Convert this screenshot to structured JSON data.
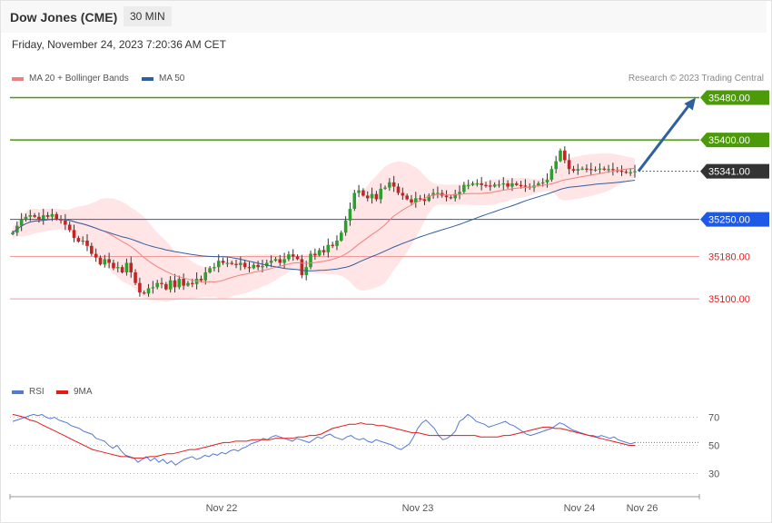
{
  "header": {
    "instrument": "Dow Jones (CME)",
    "timeframe": "30 MIN"
  },
  "timestamp": "Friday, November 24, 2023 7:20:36 AM CET",
  "legend": {
    "ma20_label": "MA 20 + Bollinger Bands",
    "ma50_label": "MA 50",
    "credit": "Research © 2023 Trading Central",
    "rsi_label": "RSI",
    "ma9_label": "9MA"
  },
  "colors": {
    "ma20": "#f08080",
    "ma50": "#2f5f9f",
    "band_fill": "#ffe0e0",
    "up": "#2e9e2e",
    "down": "#c82323",
    "resistance": "#4c9a0a",
    "current": "#333333",
    "support_blue": "#1e5ae6",
    "support_red": "#f29a9a",
    "rsi": "#5578d6",
    "rsi_ma": "#e11b1b",
    "arrow": "#2f5f9f"
  },
  "chart_data": {
    "type": "candlestick",
    "ylim": [
      34910,
      35510
    ],
    "levels": [
      {
        "label": "35480.00",
        "value": 35480,
        "kind": "resistance"
      },
      {
        "label": "35400.00",
        "value": 35400,
        "kind": "resistance"
      },
      {
        "label": "35341.00",
        "value": 35341,
        "kind": "current"
      },
      {
        "label": "35250.00",
        "value": 35250,
        "kind": "support-blue"
      },
      {
        "label": "35180.00",
        "value": 35180,
        "kind": "support"
      },
      {
        "label": "35100.00",
        "value": 35100,
        "kind": "support"
      }
    ],
    "target_arrow": {
      "from": 35341,
      "to": 35480
    },
    "x_ticks": [
      "Nov 22",
      "Nov 23",
      "Nov 24",
      "Nov 26"
    ],
    "closes": [
      35225,
      35238,
      35250,
      35255,
      35258,
      35255,
      35250,
      35258,
      35255,
      35260,
      35250,
      35248,
      35240,
      35230,
      35215,
      35208,
      35210,
      35200,
      35185,
      35178,
      35165,
      35175,
      35168,
      35158,
      35160,
      35150,
      35168,
      35150,
      35130,
      35112,
      35110,
      35120,
      35122,
      35130,
      35128,
      35118,
      35135,
      35122,
      35138,
      35125,
      35130,
      35128,
      35138,
      35135,
      35150,
      35158,
      35160,
      35172,
      35168,
      35168,
      35166,
      35164,
      35168,
      35160,
      35158,
      35164,
      35160,
      35162,
      35168,
      35172,
      35175,
      35168,
      35175,
      35184,
      35180,
      35175,
      35145,
      35160,
      35185,
      35182,
      35192,
      35188,
      35202,
      35200,
      35210,
      35225,
      35248,
      35270,
      35300,
      35305,
      35295,
      35290,
      35298,
      35288,
      35308,
      35310,
      35320,
      35312,
      35300,
      35295,
      35288,
      35282,
      35290,
      35288,
      35285,
      35295,
      35300,
      35300,
      35295,
      35292,
      35290,
      35298,
      35302,
      35315,
      35315,
      35318,
      35318,
      35315,
      35314,
      35312,
      35316,
      35316,
      35318,
      35312,
      35318,
      35315,
      35314,
      35312,
      35310,
      35314,
      35318,
      35320,
      35325,
      35345,
      35360,
      35380,
      35362,
      35345,
      35342,
      35345,
      35346,
      35345,
      35344,
      35344,
      35346,
      35344,
      35345,
      35343,
      35342,
      35340,
      35338,
      35339,
      35341
    ],
    "rsi_ylim": [
      20,
      80
    ],
    "rsi_levels": [
      70,
      50,
      30
    ],
    "rsi": [
      67,
      68,
      69,
      70,
      71,
      72,
      71,
      72,
      70,
      69,
      70,
      68,
      67,
      66,
      64,
      63,
      62,
      60,
      59,
      58,
      55,
      54,
      53,
      50,
      48,
      50,
      46,
      43,
      42,
      41,
      38,
      40,
      42,
      39,
      41,
      38,
      40,
      37,
      39,
      36,
      38,
      40,
      41,
      42,
      40,
      41,
      43,
      42,
      44,
      43,
      45,
      44,
      46,
      47,
      46,
      48,
      49,
      51,
      52,
      53,
      55,
      54,
      56,
      57,
      56,
      55,
      54,
      53,
      55,
      54,
      53,
      52,
      54,
      56,
      55,
      57,
      58,
      56,
      55,
      54,
      56,
      57,
      55,
      54,
      55,
      53,
      52,
      54,
      53,
      52,
      51,
      50,
      48,
      47,
      49,
      51,
      56,
      62,
      66,
      68,
      65,
      62,
      57,
      54,
      55,
      57,
      60,
      67,
      69,
      72,
      70,
      67,
      66,
      65,
      63,
      64,
      65,
      66,
      67,
      65,
      64,
      62,
      60,
      58,
      57,
      58,
      59,
      60,
      61,
      62,
      64,
      66,
      65,
      63,
      61,
      60,
      59,
      58,
      57,
      57,
      56,
      57,
      56,
      55,
      56,
      54,
      53,
      52,
      51,
      52
    ],
    "rsi_ma": [
      72,
      71,
      70,
      68,
      67,
      65,
      63,
      61,
      59,
      57,
      55,
      53,
      51,
      49,
      47,
      46,
      45,
      44,
      43,
      42,
      42,
      41,
      41,
      41,
      42,
      42,
      43,
      44,
      44,
      45,
      46,
      47,
      47,
      48,
      49,
      50,
      51,
      52,
      52,
      53,
      53,
      53,
      54,
      54,
      54,
      54,
      55,
      55,
      55,
      55,
      56,
      56,
      57,
      57,
      58,
      60,
      62,
      63,
      64,
      65,
      65,
      66,
      65,
      65,
      64,
      64,
      63,
      62,
      61,
      60,
      59,
      59,
      58,
      57,
      57,
      57,
      57,
      57,
      57,
      57,
      57,
      57,
      56,
      56,
      56,
      56,
      57,
      57,
      58,
      59,
      60,
      61,
      62,
      63,
      63,
      62,
      62,
      61,
      60,
      59,
      58,
      57,
      56,
      55,
      54,
      53,
      52,
      51,
      50,
      50
    ]
  }
}
